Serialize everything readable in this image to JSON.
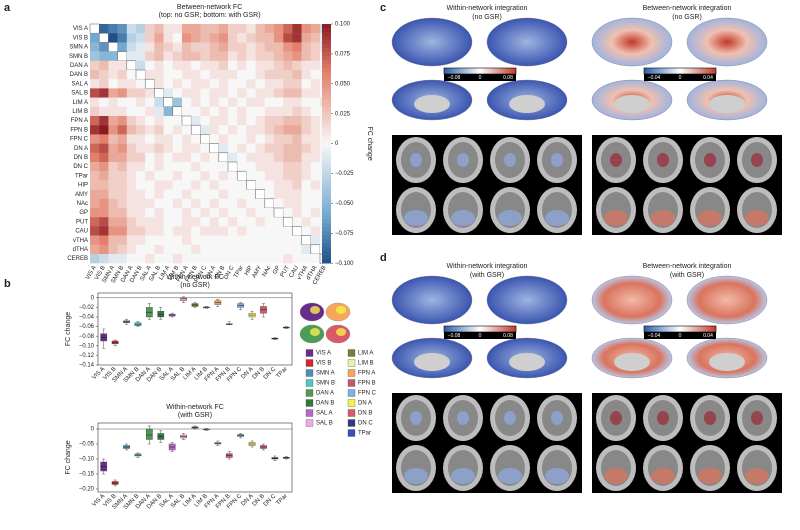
{
  "panel_labels": [
    "a",
    "b",
    "c",
    "d"
  ],
  "chart_data": [
    {
      "type": "heatmap",
      "title": "Between-network FC",
      "subtitle": "(top: no GSR; bottom: with GSR)",
      "colorbar_label": "FC change",
      "categories": [
        "VIS A",
        "VIS B",
        "SMN A",
        "SMN B",
        "DAN A",
        "DAN B",
        "SAL A",
        "SAL B",
        "LIM A",
        "LIM B",
        "FPN A",
        "FPN B",
        "FPN C",
        "DN A",
        "DN B",
        "DN C",
        "TPar",
        "HIP",
        "AMY",
        "NAc",
        "GP",
        "PUT",
        "CAU",
        "vTHA",
        "dTHA",
        "CEREB"
      ],
      "values": [
        [
          null,
          -0.09,
          -0.08,
          -0.07,
          -0.02,
          -0.03,
          0.02,
          0.03,
          0.01,
          0.01,
          0.04,
          0.04,
          0.03,
          0.03,
          0.04,
          0.02,
          0.02,
          0.01,
          0.03,
          0.04,
          0.05,
          0.07,
          0.09,
          0.05,
          0.04,
          -0.02
        ],
        [
          -0.06,
          null,
          -0.1,
          -0.08,
          -0.03,
          -0.02,
          0.02,
          0.04,
          0.01,
          0.0,
          0.05,
          0.04,
          0.03,
          0.04,
          0.05,
          0.02,
          0.01,
          0.02,
          0.03,
          0.03,
          0.05,
          0.08,
          0.09,
          0.04,
          0.03,
          -0.01
        ],
        [
          -0.05,
          -0.07,
          null,
          -0.06,
          -0.02,
          -0.01,
          0.01,
          0.03,
          0.02,
          0.01,
          0.03,
          0.02,
          0.02,
          0.03,
          0.04,
          0.02,
          0.02,
          0.01,
          0.02,
          0.03,
          0.03,
          0.05,
          0.06,
          0.03,
          0.02,
          -0.01
        ],
        [
          -0.04,
          -0.05,
          -0.05,
          null,
          -0.01,
          -0.01,
          0.02,
          0.03,
          0.01,
          0.02,
          0.03,
          0.03,
          0.02,
          0.03,
          0.03,
          0.01,
          0.02,
          0.01,
          0.02,
          0.02,
          0.03,
          0.04,
          0.05,
          0.03,
          0.02,
          0.0
        ],
        [
          0.02,
          0.03,
          0.01,
          0.01,
          null,
          -0.02,
          0.0,
          0.01,
          0.0,
          0.01,
          0.01,
          0.0,
          0.01,
          0.01,
          0.02,
          0.0,
          0.01,
          0.0,
          0.01,
          0.01,
          0.02,
          0.03,
          0.02,
          0.01,
          0.01,
          0.0
        ],
        [
          0.03,
          0.02,
          0.01,
          0.02,
          0.0,
          null,
          0.01,
          0.01,
          0.0,
          0.0,
          0.01,
          0.01,
          0.0,
          0.01,
          0.01,
          0.01,
          0.0,
          0.0,
          0.01,
          0.02,
          0.02,
          0.02,
          0.03,
          0.01,
          0.0,
          0.0
        ],
        [
          0.01,
          0.02,
          0.0,
          0.01,
          0.01,
          0.0,
          null,
          0.01,
          0.0,
          0.01,
          0.0,
          0.01,
          0.01,
          0.0,
          0.01,
          0.0,
          0.0,
          0.01,
          0.0,
          0.01,
          0.01,
          0.02,
          0.02,
          0.0,
          0.01,
          0.0
        ],
        [
          0.08,
          0.09,
          0.04,
          0.05,
          0.02,
          0.02,
          0.01,
          null,
          -0.01,
          0.0,
          0.01,
          0.01,
          0.0,
          0.01,
          0.01,
          0.0,
          0.01,
          0.0,
          0.01,
          0.01,
          0.02,
          0.03,
          0.03,
          0.01,
          0.01,
          0.0
        ],
        [
          0.01,
          0.0,
          0.01,
          0.0,
          0.0,
          0.01,
          0.0,
          -0.02,
          null,
          -0.04,
          0.0,
          0.01,
          0.0,
          0.01,
          0.0,
          0.01,
          0.0,
          0.01,
          0.01,
          0.0,
          0.0,
          0.01,
          0.01,
          0.0,
          0.0,
          0.01
        ],
        [
          0.02,
          0.01,
          0.01,
          0.01,
          0.0,
          0.0,
          0.01,
          -0.01,
          -0.05,
          null,
          0.0,
          0.0,
          0.01,
          0.0,
          0.01,
          0.0,
          0.01,
          0.0,
          0.0,
          0.01,
          0.01,
          0.01,
          0.02,
          0.01,
          0.0,
          0.0
        ],
        [
          0.07,
          0.09,
          0.04,
          0.05,
          0.02,
          0.01,
          0.0,
          0.01,
          0.0,
          0.0,
          null,
          -0.01,
          0.0,
          0.01,
          0.01,
          0.0,
          0.01,
          0.0,
          0.01,
          0.02,
          0.02,
          0.03,
          0.03,
          0.02,
          0.01,
          0.0
        ],
        [
          0.09,
          0.1,
          0.05,
          0.07,
          0.03,
          0.02,
          0.01,
          0.02,
          0.0,
          0.01,
          0.0,
          null,
          -0.01,
          0.01,
          0.0,
          0.01,
          0.0,
          0.01,
          0.01,
          0.02,
          0.03,
          0.04,
          0.04,
          0.02,
          0.01,
          0.0
        ],
        [
          0.05,
          0.06,
          0.03,
          0.04,
          0.01,
          0.01,
          0.0,
          0.01,
          0.01,
          0.0,
          0.01,
          0.0,
          null,
          0.0,
          0.01,
          0.0,
          0.0,
          0.01,
          0.0,
          0.01,
          0.02,
          0.02,
          0.03,
          0.01,
          0.01,
          0.0
        ],
        [
          0.07,
          0.08,
          0.04,
          0.05,
          0.02,
          0.01,
          0.01,
          0.02,
          0.01,
          0.0,
          0.01,
          0.01,
          0.0,
          null,
          -0.01,
          0.0,
          0.01,
          0.0,
          0.01,
          0.02,
          0.02,
          0.03,
          0.03,
          0.02,
          0.01,
          0.0
        ],
        [
          0.06,
          0.07,
          0.04,
          0.04,
          0.02,
          0.02,
          0.0,
          0.01,
          0.0,
          0.01,
          0.01,
          0.0,
          0.01,
          0.0,
          null,
          -0.01,
          0.0,
          0.01,
          0.01,
          0.01,
          0.02,
          0.03,
          0.03,
          0.01,
          0.01,
          0.0
        ],
        [
          0.04,
          0.05,
          0.02,
          0.03,
          0.01,
          0.01,
          0.0,
          0.01,
          0.0,
          0.0,
          0.0,
          0.01,
          0.0,
          0.0,
          0.0,
          null,
          0.0,
          0.0,
          0.01,
          0.01,
          0.01,
          0.02,
          0.02,
          0.01,
          0.0,
          0.0
        ],
        [
          0.03,
          0.04,
          0.02,
          0.02,
          0.01,
          0.0,
          0.01,
          0.0,
          0.0,
          0.01,
          0.0,
          0.0,
          0.01,
          0.0,
          0.01,
          0.0,
          null,
          0.0,
          0.0,
          0.01,
          0.01,
          0.02,
          0.02,
          0.01,
          0.0,
          0.0
        ],
        [
          0.03,
          0.03,
          0.02,
          0.02,
          0.01,
          0.0,
          0.0,
          0.01,
          0.01,
          0.0,
          0.0,
          0.01,
          0.0,
          0.01,
          0.0,
          0.0,
          0.0,
          null,
          0.0,
          0.0,
          0.01,
          0.01,
          0.02,
          0.0,
          0.01,
          0.0
        ],
        [
          0.04,
          0.04,
          0.02,
          0.02,
          0.01,
          0.01,
          0.0,
          0.01,
          0.0,
          0.0,
          0.01,
          0.0,
          0.0,
          0.0,
          0.01,
          0.0,
          0.0,
          0.0,
          null,
          0.0,
          0.01,
          0.01,
          0.01,
          0.0,
          0.0,
          0.0
        ],
        [
          0.04,
          0.05,
          0.03,
          0.02,
          0.01,
          0.01,
          0.01,
          0.0,
          0.0,
          0.01,
          0.0,
          0.01,
          0.0,
          0.01,
          0.0,
          0.0,
          0.01,
          0.0,
          0.0,
          null,
          0.0,
          0.01,
          0.01,
          0.0,
          0.0,
          0.0
        ],
        [
          0.05,
          0.05,
          0.03,
          0.03,
          0.01,
          0.01,
          0.0,
          0.01,
          0.0,
          0.0,
          0.01,
          0.0,
          0.01,
          0.0,
          0.01,
          0.0,
          0.0,
          0.01,
          0.0,
          0.0,
          null,
          0.0,
          0.01,
          0.0,
          0.01,
          0.0
        ],
        [
          0.07,
          0.08,
          0.04,
          0.04,
          0.02,
          0.01,
          0.01,
          0.01,
          0.0,
          0.0,
          0.01,
          0.01,
          0.0,
          0.01,
          0.0,
          0.01,
          0.0,
          0.0,
          0.01,
          0.0,
          0.0,
          null,
          0.0,
          0.01,
          0.0,
          0.0
        ],
        [
          0.08,
          0.09,
          0.05,
          0.05,
          0.02,
          0.02,
          0.01,
          0.01,
          0.0,
          0.01,
          0.01,
          0.0,
          0.01,
          0.01,
          0.01,
          0.0,
          0.01,
          0.0,
          0.0,
          0.0,
          0.0,
          0.0,
          null,
          0.0,
          0.01,
          0.0
        ],
        [
          0.05,
          0.06,
          0.03,
          0.03,
          0.01,
          0.01,
          0.0,
          0.0,
          0.0,
          0.0,
          0.01,
          0.0,
          0.0,
          0.0,
          0.0,
          0.0,
          0.0,
          0.0,
          0.0,
          0.0,
          0.0,
          0.0,
          0.0,
          null,
          -0.01,
          0.0
        ],
        [
          0.04,
          0.05,
          0.03,
          0.02,
          0.01,
          0.0,
          0.0,
          0.01,
          0.0,
          0.0,
          0.0,
          0.01,
          0.0,
          0.0,
          0.0,
          0.0,
          0.0,
          0.0,
          0.0,
          0.0,
          0.0,
          0.0,
          0.0,
          -0.01,
          null,
          0.0
        ],
        [
          -0.03,
          -0.02,
          -0.01,
          -0.01,
          0.0,
          0.0,
          0.01,
          0.0,
          0.0,
          0.01,
          0.0,
          0.0,
          0.0,
          0.0,
          0.0,
          0.0,
          0.0,
          0.0,
          0.0,
          0.0,
          0.0,
          0.01,
          0.0,
          0.0,
          0.0,
          null
        ]
      ],
      "zlim": [
        -0.1,
        0.1
      ],
      "zticks": [
        {
          "value": 0.1,
          "label": "0.100"
        },
        {
          "value": 0.075,
          "label": "0.075"
        },
        {
          "value": 0.05,
          "label": "0.050"
        },
        {
          "value": 0.025,
          "label": "0.025"
        },
        0,
        {
          "value": -0.025,
          "label": "−0.025"
        },
        {
          "value": -0.05,
          "label": "−0.050"
        },
        {
          "value": -0.075,
          "label": "−0.075"
        },
        {
          "value": -0.1,
          "label": "−0.100"
        }
      ]
    },
    {
      "type": "box",
      "title": "Within-network FC",
      "subtitle": "(no GSR)",
      "ylabel": "FC change",
      "categories": [
        "VIS A",
        "VIS B",
        "SMN A",
        "SMN B",
        "DAN A",
        "DAN B",
        "SAL A",
        "SAL B",
        "LIM A",
        "LIM B",
        "FPN A",
        "FPN B",
        "FPN C",
        "DN A",
        "DN B",
        "DN C",
        "TPar"
      ],
      "colors": [
        "#6a2c8a",
        "#d7242a",
        "#4a91b5",
        "#4dc7c0",
        "#4d9c55",
        "#2f7a3a",
        "#b867c9",
        "#f2a8e8",
        "#7a7a3a",
        "#e8f0b0",
        "#f5a65b",
        "#c5596a",
        "#7cb2e6",
        "#f5f04a",
        "#d9596a",
        "#2d3a8a",
        "#3b4cc0"
      ],
      "boxes": [
        [
          -0.105,
          -0.09,
          -0.083,
          -0.075,
          -0.065
        ],
        [
          -0.1,
          -0.096,
          -0.093,
          -0.09,
          -0.088
        ],
        [
          -0.055,
          -0.052,
          -0.05,
          -0.048,
          -0.045
        ],
        [
          -0.06,
          -0.058,
          -0.055,
          -0.052,
          -0.05
        ],
        [
          -0.045,
          -0.04,
          -0.03,
          -0.02,
          -0.012
        ],
        [
          -0.045,
          -0.04,
          -0.035,
          -0.028,
          -0.02
        ],
        [
          -0.04,
          -0.038,
          -0.036,
          -0.034,
          -0.032
        ],
        [
          -0.01,
          -0.006,
          -0.002,
          0.0,
          0.002
        ],
        [
          -0.02,
          -0.018,
          -0.015,
          -0.012,
          -0.01
        ],
        [
          -0.022,
          -0.021,
          -0.02,
          -0.019,
          -0.018
        ],
        [
          -0.018,
          -0.014,
          -0.01,
          -0.006,
          -0.003
        ],
        [
          -0.056,
          -0.055,
          -0.055,
          -0.054,
          -0.05
        ],
        [
          -0.025,
          -0.02,
          -0.016,
          -0.012,
          -0.01
        ],
        [
          -0.045,
          -0.04,
          -0.036,
          -0.032,
          -0.028
        ],
        [
          -0.04,
          -0.032,
          -0.025,
          -0.018,
          -0.012
        ],
        [
          -0.087,
          -0.086,
          -0.085,
          -0.084,
          -0.083
        ],
        [
          -0.064,
          -0.063,
          -0.062,
          -0.061,
          -0.06
        ]
      ],
      "ylim": [
        -0.14,
        0.01
      ],
      "yticks": [
        0,
        {
          "value": -0.02,
          "label": "−0.02"
        },
        {
          "value": -0.04,
          "label": "−0.04"
        },
        {
          "value": -0.06,
          "label": "−0.06"
        },
        {
          "value": -0.08,
          "label": "−0.08"
        },
        {
          "value": -0.1,
          "label": "−0.10"
        },
        {
          "value": -0.12,
          "label": "−0.12"
        },
        {
          "value": -0.14,
          "label": "−0.14"
        }
      ],
      "legend": true
    },
    {
      "type": "box",
      "title": "Within-network FC",
      "subtitle": "(with GSR)",
      "ylabel": "FC change",
      "categories": [
        "VIS A",
        "VIS B",
        "SMN A",
        "SMN B",
        "DAN A",
        "DAN B",
        "SAL A",
        "SAL B",
        "LIM A",
        "LIM B",
        "FPN A",
        "FPN B",
        "FPN C",
        "DN A",
        "DN B",
        "DN C",
        "TPar"
      ],
      "colors": [
        "#6a2c8a",
        "#d7242a",
        "#4a91b5",
        "#4dc7c0",
        "#4d9c55",
        "#2f7a3a",
        "#b867c9",
        "#f2a8e8",
        "#7a7a3a",
        "#e8f0b0",
        "#f5a65b",
        "#c5596a",
        "#7cb2e6",
        "#f5f04a",
        "#d9596a",
        "#2d3a8a",
        "#3b4cc0"
      ],
      "boxes": [
        [
          -0.15,
          -0.14,
          -0.125,
          -0.11,
          -0.1
        ],
        [
          -0.19,
          -0.185,
          -0.18,
          -0.175,
          -0.17
        ],
        [
          -0.07,
          -0.065,
          -0.06,
          -0.055,
          -0.05
        ],
        [
          -0.095,
          -0.09,
          -0.087,
          -0.083,
          -0.08
        ],
        [
          -0.05,
          -0.035,
          -0.02,
          0.0,
          0.01
        ],
        [
          -0.045,
          -0.035,
          -0.025,
          -0.015,
          -0.005
        ],
        [
          -0.075,
          -0.07,
          -0.06,
          -0.05,
          -0.045
        ],
        [
          -0.035,
          -0.03,
          -0.025,
          -0.02,
          -0.015
        ],
        [
          0.0,
          0.003,
          0.005,
          0.007,
          0.01
        ],
        [
          -0.005,
          -0.003,
          -0.002,
          0.0,
          0.002
        ],
        [
          -0.055,
          -0.05,
          -0.048,
          -0.045,
          -0.04
        ],
        [
          -0.1,
          -0.095,
          -0.088,
          -0.082,
          -0.075
        ],
        [
          -0.03,
          -0.025,
          -0.022,
          -0.018,
          -0.015
        ],
        [
          -0.06,
          -0.055,
          -0.05,
          -0.045,
          -0.04
        ],
        [
          -0.07,
          -0.065,
          -0.06,
          -0.055,
          -0.05
        ],
        [
          -0.105,
          -0.1,
          -0.098,
          -0.095,
          -0.09
        ],
        [
          -0.1,
          -0.098,
          -0.096,
          -0.094,
          -0.092
        ]
      ],
      "ylim": [
        -0.21,
        0.02
      ],
      "yticks": [
        0,
        {
          "value": -0.05,
          "label": "−0.05"
        },
        {
          "value": -0.1,
          "label": "−0.10"
        },
        {
          "value": -0.15,
          "label": "−0.15"
        },
        {
          "value": -0.2,
          "label": "−0.20"
        }
      ]
    }
  ],
  "brain_panels": [
    {
      "title": "Within-network integration",
      "subtitle": "(no GSR)",
      "colorbar_labels": [
        "−0.08",
        "0",
        "0.08"
      ]
    },
    {
      "title": "Between-network integration",
      "subtitle": "(no GSR)",
      "colorbar_labels": [
        "−0.04",
        "0",
        "0.04"
      ]
    },
    {
      "title": "Within-network integration",
      "subtitle": "(with GSR)",
      "colorbar_labels": [
        "−0.08",
        "0",
        "0.08"
      ]
    },
    {
      "title": "Between-network integration",
      "subtitle": "(with GSR)",
      "colorbar_labels": [
        "−0.04",
        "0",
        "0.04"
      ]
    }
  ]
}
